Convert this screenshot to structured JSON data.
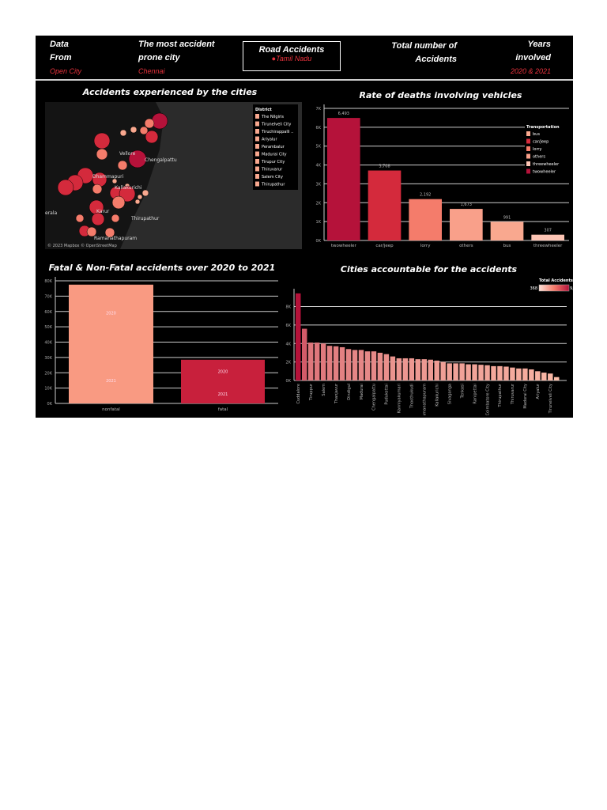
{
  "header": {
    "data_label_1": "Data",
    "data_label_2": "From",
    "data_value": "Open City",
    "city_label_1": "The most accident",
    "city_label_2": "prone city",
    "city_value": "Chennai",
    "title": "Road Accidents",
    "subtitle": "Tamil Nadu",
    "total_label_1": "Total number of",
    "total_label_2": "Accidents",
    "years_label_1": "Years",
    "years_label_2": "involved",
    "years_value": "2020 & 2021"
  },
  "colors": {
    "accent": "#e8323c",
    "dark": "#b5123a",
    "mid": "#d42a3c",
    "light": "#f47c6b",
    "pale": "#f9a88f"
  },
  "map": {
    "title": "Accidents experienced by the cities",
    "legend_title": "District",
    "legend": [
      "The Nilgiris",
      "Tirunelveli City",
      "Tiruchirappalli ..",
      "Ariyalur",
      "Perambalur",
      "Madurai City",
      "Tirupur City",
      "Thiruvarur",
      "Salem City",
      "Thirupathur"
    ],
    "places": [
      "Vellore",
      "Chengalpattu",
      "Dhammapuri",
      "Kallakurichi",
      "Karur",
      "Thirupathur",
      "Ramanathapuram",
      "erala"
    ],
    "attribution": "© 2023 Mapbox © OpenStreetMap"
  },
  "chart_data": [
    {
      "type": "bar",
      "title": "Rate of deaths involving vehicles",
      "categories": [
        "twowheeler",
        "car/jeep",
        "lorry",
        "others",
        "bus",
        "threewheeler"
      ],
      "values": [
        6493,
        3708,
        2192,
        1673,
        991,
        307
      ],
      "data_labels": [
        "6,493",
        "3,708",
        "2,192",
        "1,673",
        "991",
        "307"
      ],
      "colors": [
        "#b5123a",
        "#d42a3c",
        "#f47c6b",
        "#f9a08a",
        "#f9a88f",
        "#fcc4b4"
      ],
      "ylim": [
        0,
        7000
      ],
      "yticks": [
        "0K",
        "1K",
        "2K",
        "3K",
        "4K",
        "5K",
        "6K",
        "7K"
      ],
      "legend_title": "Transportation",
      "legend": [
        "bus",
        "car/jeep",
        "lorry",
        "others",
        "threewheeler",
        "twowheeler"
      ],
      "legend_colors": [
        "#f9a88f",
        "#d42a3c",
        "#f47c6b",
        "#f9a08a",
        "#fcc4b4",
        "#b5123a"
      ],
      "grid": true
    },
    {
      "type": "bar",
      "title": "Fatal & Non-Fatal accidents over 2020 to 2021",
      "categories": [
        "nonfatal",
        "fatal"
      ],
      "values": [
        77500,
        28500
      ],
      "segment_labels": [
        [
          "2020",
          "2021"
        ],
        [
          "2020",
          "2021"
        ]
      ],
      "colors": [
        "#f99a82",
        "#c8203c"
      ],
      "ylim": [
        0,
        80000
      ],
      "yticks": [
        "0K",
        "10K",
        "20K",
        "30K",
        "40K",
        "50K",
        "60K",
        "70K",
        "80K"
      ],
      "grid": true
    },
    {
      "type": "bar",
      "title": "Cities accountable for the accidents",
      "categories": [
        "Cuddalore",
        "",
        "Tiruppur",
        "",
        "Salem",
        "",
        "Thanjavur",
        "",
        "Dindigul",
        "",
        "Madurai",
        "",
        "Chengalpattu",
        "",
        "Pudukottai",
        "",
        "Kanniyakumari",
        "",
        "Thoothukudi",
        "",
        "Ramanathapuram",
        "",
        "Kallakurichi",
        "",
        "Sivaganga",
        "",
        "Tenkasi",
        "",
        "Ranipettai",
        "",
        "Coimbatore City",
        "",
        "Thirupathur",
        "",
        "Thiruvarur",
        "",
        "Madurai City",
        "",
        "Ariyalur",
        "",
        "Tirunelveli City",
        ""
      ],
      "values": [
        9421,
        5600,
        4100,
        4100,
        4000,
        3750,
        3700,
        3600,
        3400,
        3300,
        3300,
        3150,
        3150,
        3000,
        2850,
        2600,
        2400,
        2400,
        2400,
        2300,
        2300,
        2250,
        2150,
        2000,
        1850,
        1850,
        1850,
        1750,
        1750,
        1700,
        1650,
        1550,
        1550,
        1500,
        1400,
        1300,
        1300,
        1200,
        1000,
        850,
        750,
        368
      ],
      "ylim": [
        0,
        9500
      ],
      "yticks": [
        "0K",
        "2K",
        "4K",
        "6K",
        "8K"
      ],
      "legend_title": "Total Accidents",
      "legend_min": "368",
      "legend_max": "9,421",
      "grid": true
    }
  ]
}
